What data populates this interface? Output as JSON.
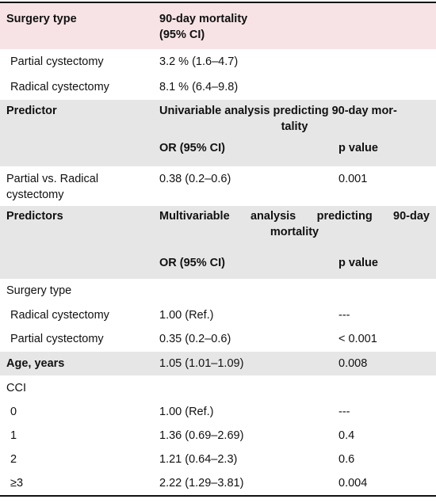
{
  "header": {
    "col1": "Surgery type",
    "col2_line1": "90-day mortality",
    "col2_line2": "(95% CI)"
  },
  "mortality_rows": [
    {
      "label": "Partial cystectomy",
      "value": "3.2 % (1.6–4.7)"
    },
    {
      "label": "Radical cystectomy",
      "value": "8.1 % (6.4–9.8)"
    }
  ],
  "univariable": {
    "predictor_label": "Predictor",
    "title_line1": "Univariable analysis predicting 90-day mor-",
    "title_line2": "tality",
    "or_label": "OR (95% CI)",
    "p_label": "p value",
    "row": {
      "label_line1": "Partial vs. Radical",
      "label_line2": "cystectomy",
      "or": "0.38 (0.2–0.6)",
      "p": "0.001"
    }
  },
  "multivariable": {
    "predictor_label": "Predictors",
    "title_line1": "Multivariable analysis predicting 90-day",
    "title_line2": "mortality",
    "or_label": "OR (95% CI)",
    "p_label": "p value",
    "surgery_type_label": "Surgery type",
    "surgery_rows": [
      {
        "label": "Radical cystectomy",
        "or": "1.00 (Ref.)",
        "p": "---"
      },
      {
        "label": "Partial cystectomy",
        "or": "0.35 (0.2–0.6)",
        "p": "< 0.001"
      }
    ],
    "age_row": {
      "label": "Age, years",
      "or": "1.05 (1.01–1.09)",
      "p": "0.008"
    },
    "cci_label": "CCI",
    "cci_rows": [
      {
        "label": "0",
        "or": "1.00 (Ref.)",
        "p": "---"
      },
      {
        "label": "1",
        "or": "1.36 (0.69–2.69)",
        "p": "0.4"
      },
      {
        "label": "2",
        "or": "1.21 (0.64–2.3)",
        "p": "0.6"
      },
      {
        "label": "≥3",
        "or": "2.22 (1.29–3.81)",
        "p": "0.004"
      }
    ]
  },
  "colors": {
    "header_bg": "#f7e3e5",
    "section_bg": "#e6e6e6",
    "rule": "#111111"
  }
}
